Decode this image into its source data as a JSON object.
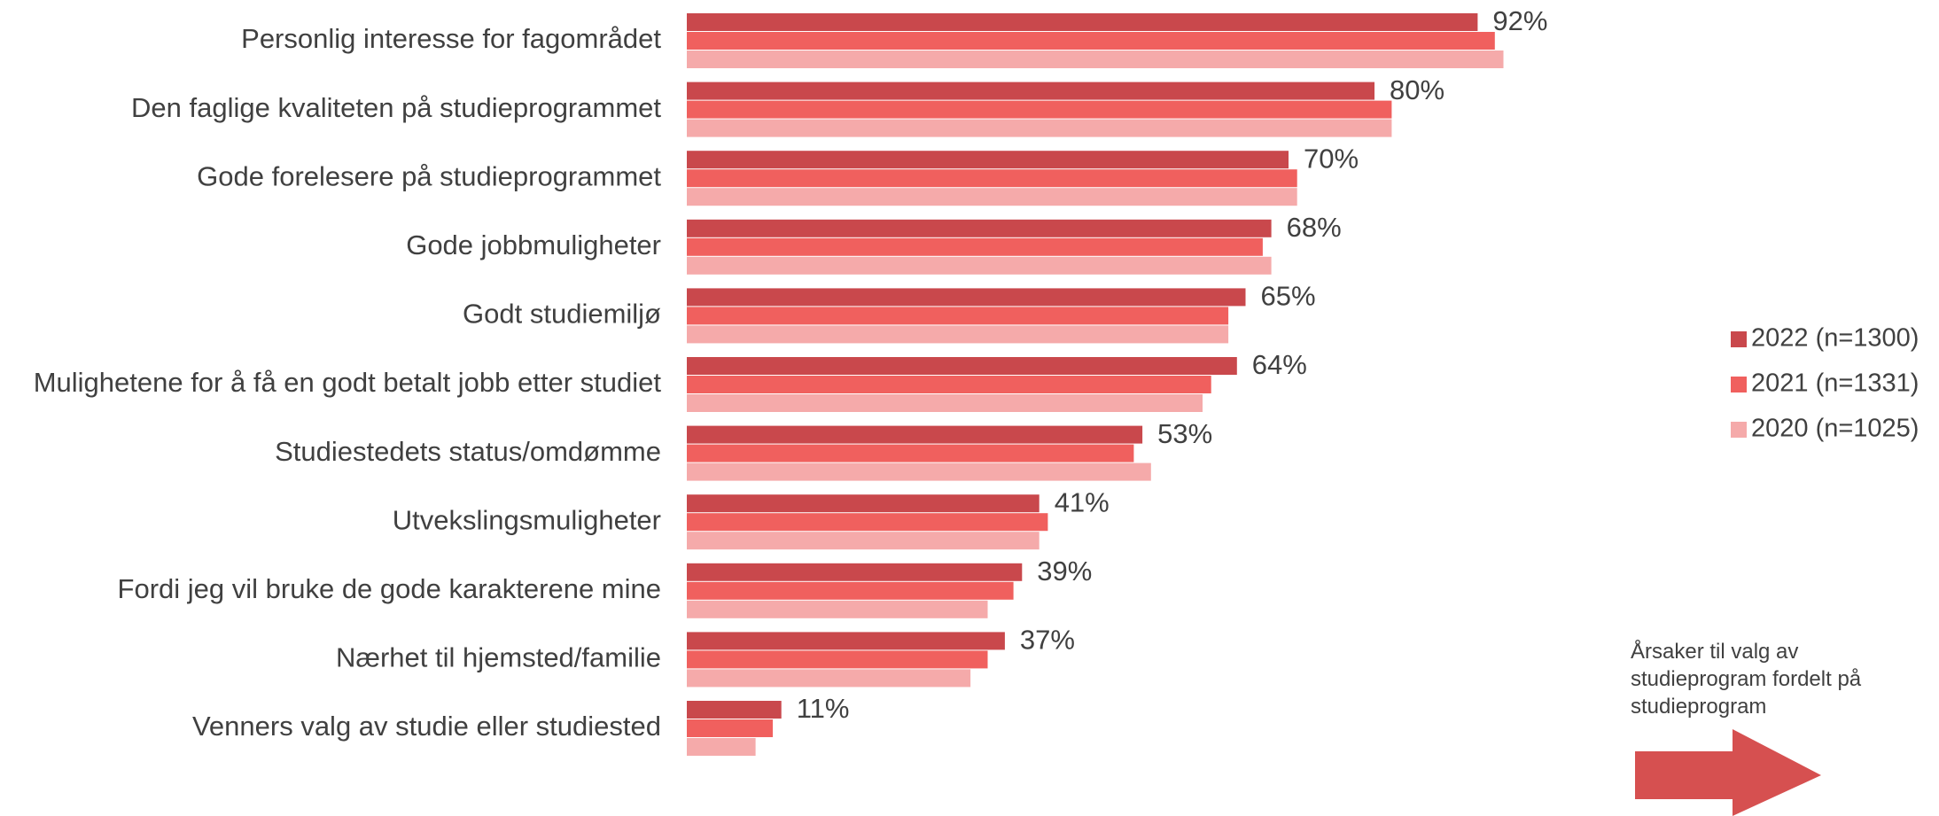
{
  "chart_data": {
    "type": "bar",
    "orientation": "horizontal",
    "categories": [
      "Personlig interesse for fagområdet",
      "Den faglige kvaliteten på studieprogrammet",
      "Gode forelesere på studieprogrammet",
      "Gode jobbmuligheter",
      "Godt studiemiljø",
      "Mulighetene for å få en godt betalt jobb etter studiet",
      "Studiestedets status/omdømme",
      "Utvekslingsmuligheter",
      "Fordi jeg vil bruke de gode karakterene mine",
      "Nærhet til hjemsted/familie",
      "Venners valg av studie eller studiested"
    ],
    "series": [
      {
        "name": "2022 (n=1300)",
        "color": "#C9484C",
        "values": [
          92,
          80,
          70,
          68,
          65,
          64,
          53,
          41,
          39,
          37,
          11
        ]
      },
      {
        "name": "2021 (n=1331)",
        "color": "#F0605E",
        "values": [
          94,
          82,
          71,
          67,
          63,
          61,
          52,
          42,
          38,
          35,
          10
        ]
      },
      {
        "name": "2020 (n=1025)",
        "color": "#F5AAAA",
        "values": [
          95,
          82,
          71,
          68,
          63,
          60,
          54,
          41,
          35,
          33,
          8
        ]
      }
    ],
    "value_labels": [
      "92%",
      "80%",
      "70%",
      "68%",
      "65%",
      "64%",
      "53%",
      "41%",
      "39%",
      "37%",
      "11%"
    ],
    "xlim": [
      0,
      100
    ],
    "legend_position": "right",
    "grid": false
  },
  "annotation": {
    "text": "Årsaker til valg av studieprogram fordelt på studieprogram",
    "arrow_color": "#D65050",
    "arrow_icon": "arrow-right-icon"
  }
}
